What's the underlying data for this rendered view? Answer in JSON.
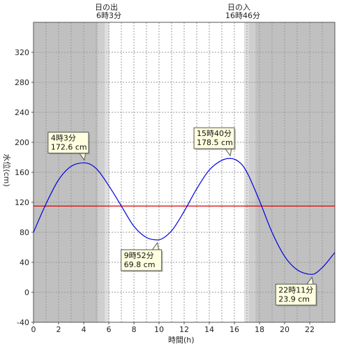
{
  "chart_data": {
    "type": "line",
    "xlabel": "時間(h)",
    "ylabel": "水位(cm)",
    "xlim": [
      0,
      24
    ],
    "ylim": [
      -40,
      360
    ],
    "x_ticks": [
      0,
      2,
      4,
      6,
      8,
      10,
      12,
      14,
      16,
      18,
      20,
      22
    ],
    "y_ticks": [
      -40,
      0,
      40,
      80,
      120,
      160,
      200,
      240,
      280,
      320
    ],
    "grid": true,
    "series": [
      {
        "color": "#0000e0",
        "x": [
          0,
          1,
          2,
          3,
          4.05,
          5,
          6,
          7,
          8,
          9,
          9.87,
          11,
          12,
          13,
          14,
          15,
          15.67,
          16.5,
          17,
          18,
          19,
          20,
          21,
          22.18,
          23,
          24
        ],
        "y": [
          80,
          118,
          150,
          168,
          172.6,
          165,
          142,
          115,
          88,
          73,
          69.8,
          82,
          108,
          138,
          163,
          176,
          178.5,
          172,
          160,
          122,
          80,
          48,
          30,
          23.9,
          33,
          53
        ]
      }
    ],
    "reference_line": {
      "y": 115,
      "color": "#e00000"
    },
    "night_color": "#c0c0c0",
    "twilight_color": "#e0e0e0",
    "day_color": "#ffffff",
    "sunrise": {
      "title": "日の出",
      "time": "6時3分",
      "hour": 6.05
    },
    "sunset": {
      "title": "日の入",
      "time": "16時46分",
      "hour": 16.77
    },
    "annotations": [
      {
        "time": "4時3分",
        "level": "172.6 cm",
        "hour": 4.05,
        "value": 172.6,
        "position": "above"
      },
      {
        "time": "9時52分",
        "level": "69.8 cm",
        "hour": 9.87,
        "value": 69.8,
        "position": "below"
      },
      {
        "time": "15時40分",
        "level": "178.5 cm",
        "hour": 15.67,
        "value": 178.5,
        "position": "above"
      },
      {
        "time": "22時11分",
        "level": "23.9 cm",
        "hour": 22.18,
        "value": 23.9,
        "position": "below"
      }
    ]
  }
}
